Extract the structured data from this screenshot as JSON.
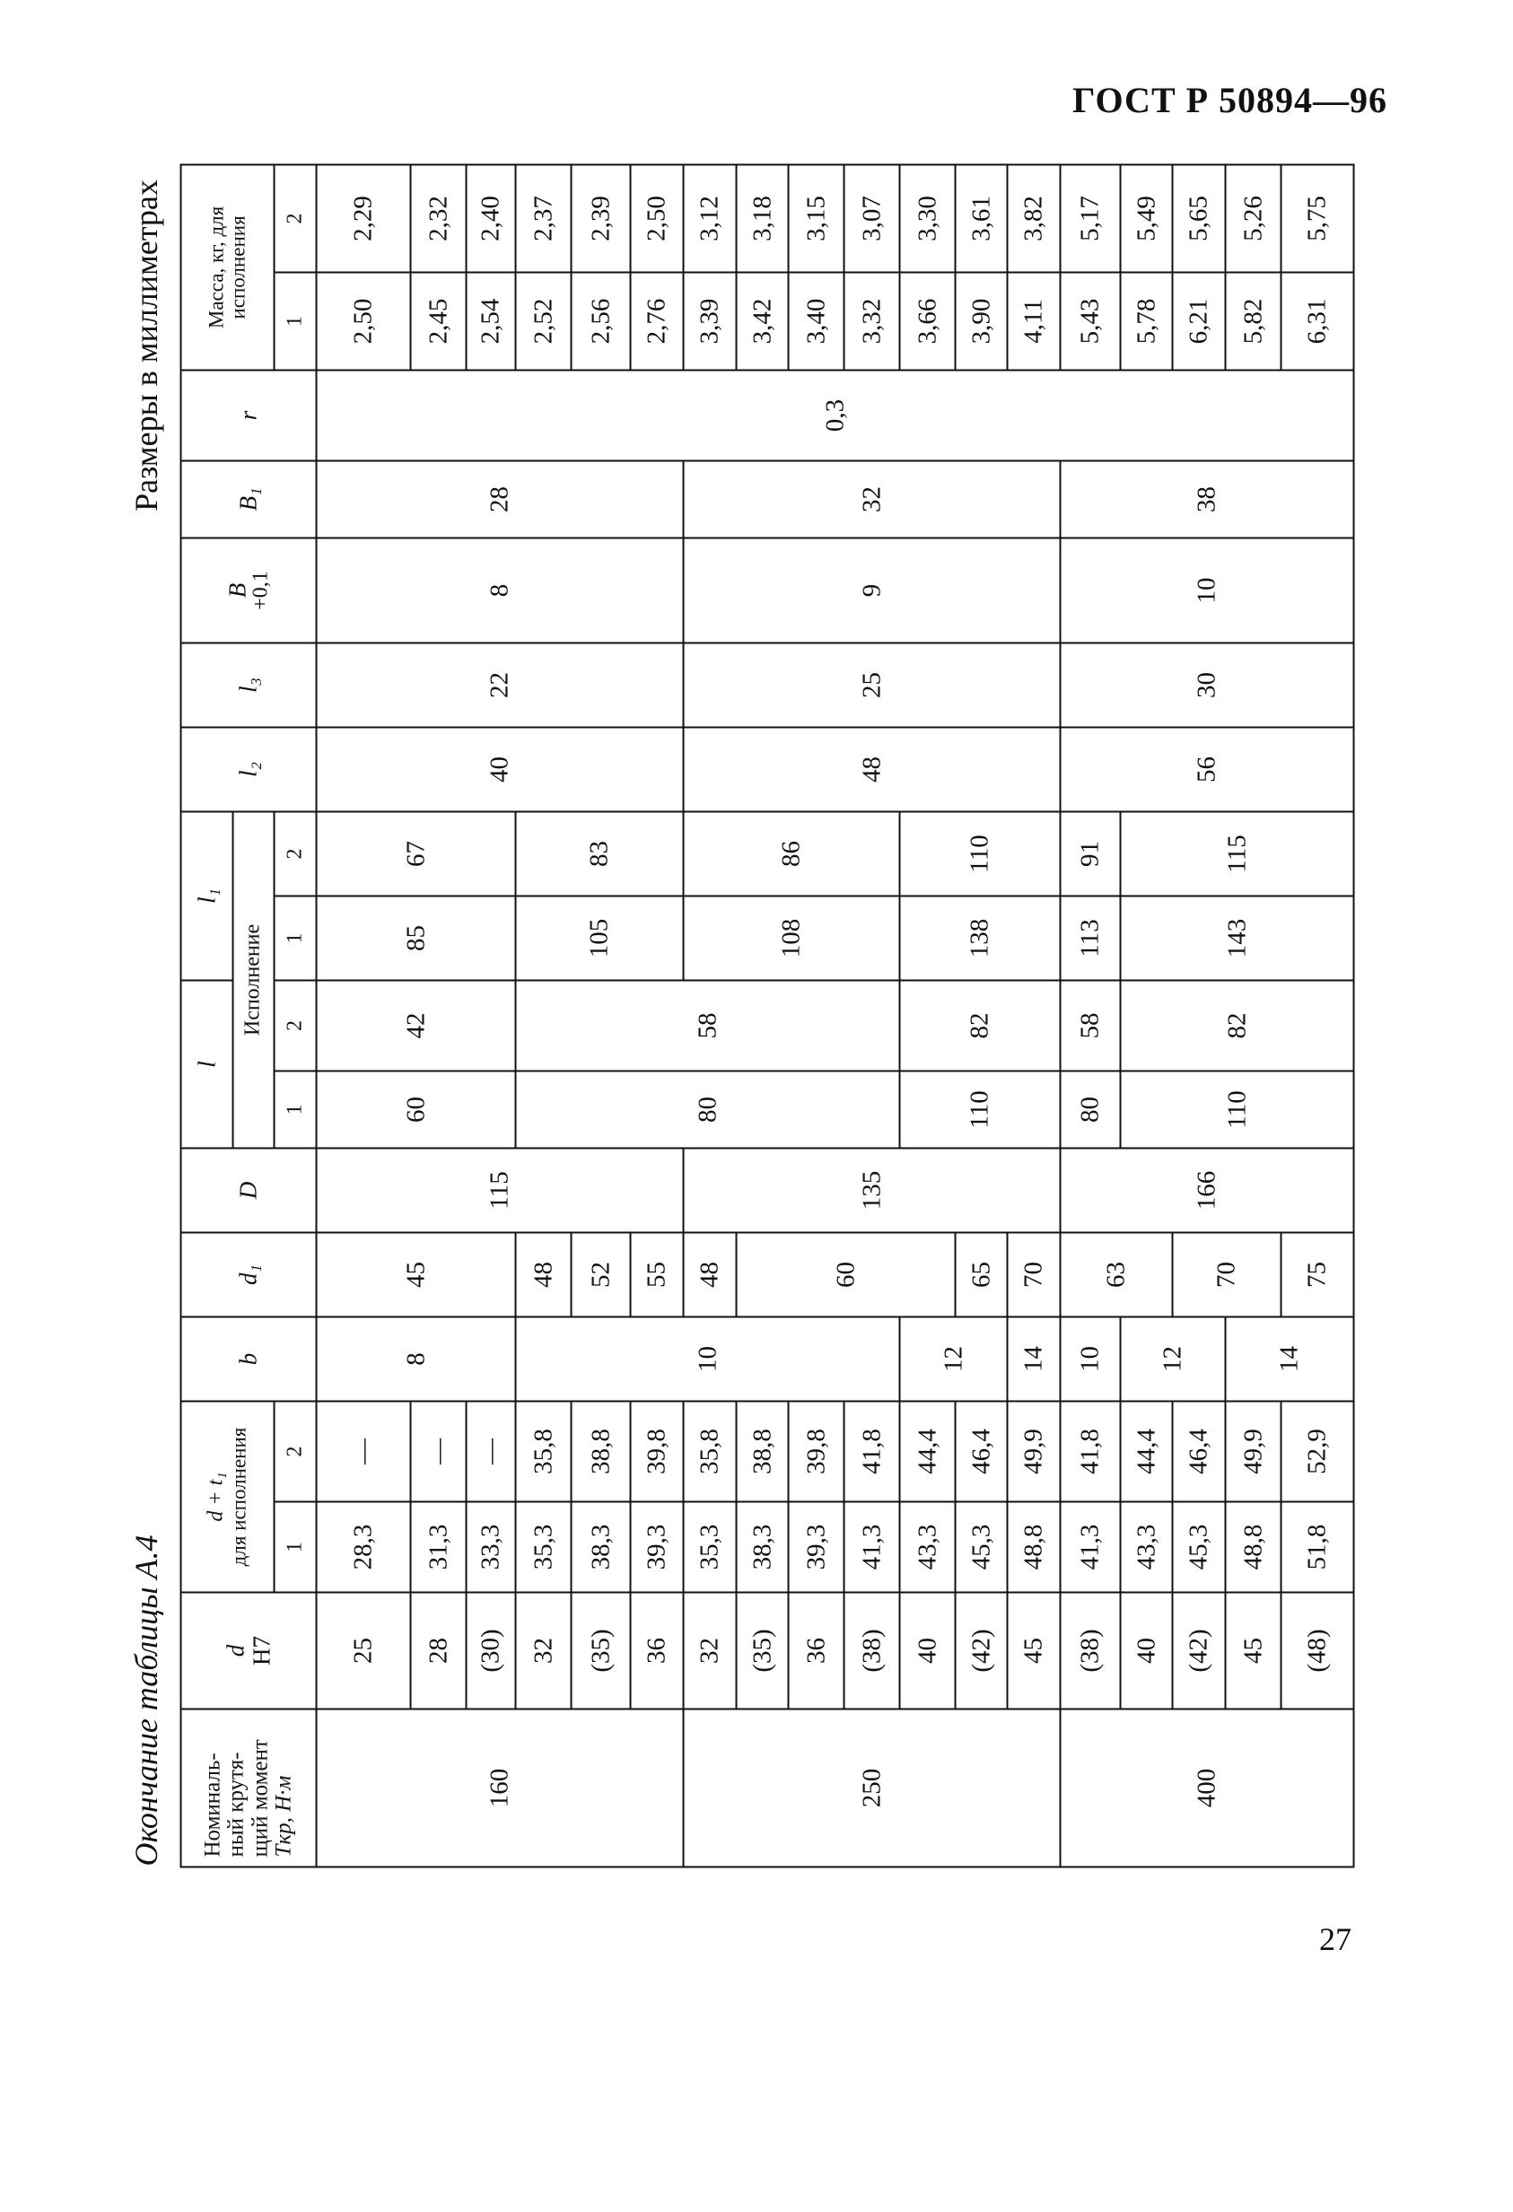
{
  "page": {
    "standard": "ГОСТ Р 50894—96",
    "units_note": "Размеры в миллиметрах",
    "caption": "Окончание таблицы А.4",
    "page_number": "27"
  },
  "table": {
    "headers": {
      "torque_line1": "Номиналь-",
      "torque_line2": "ный крутя-",
      "torque_line3": "щий момент",
      "torque_line4": "Tкр, Н·м",
      "d": "d",
      "d_tol": "H7",
      "dt1": "d + t₁",
      "dt1_sub": "для исполнения",
      "b": "b",
      "d1": "d₁",
      "D": "D",
      "l": "l",
      "l1": "l₁",
      "execution": "Исполнение",
      "l2": "l₂",
      "l3": "l₃",
      "B": "B",
      "B_tol": "+0,1",
      "B1": "B₁",
      "r": "r",
      "mass": "Масса, кг, для исполнения",
      "exec1": "1",
      "exec2": "2"
    },
    "columns": [
      {
        "key": "torque",
        "cells": [
          [
            "160",
            6
          ],
          [
            "250",
            7
          ],
          [
            "400",
            5
          ]
        ]
      },
      {
        "key": "d",
        "cells": [
          [
            "25",
            1
          ],
          [
            "28",
            1
          ],
          [
            "(30)",
            1
          ],
          [
            "32",
            1
          ],
          [
            "(35)",
            1
          ],
          [
            "36",
            1
          ],
          [
            "32",
            1
          ],
          [
            "(35)",
            1
          ],
          [
            "36",
            1
          ],
          [
            "(38)",
            1
          ],
          [
            "40",
            1
          ],
          [
            "(42)",
            1
          ],
          [
            "45",
            1
          ],
          [
            "(38)",
            1
          ],
          [
            "40",
            1
          ],
          [
            "(42)",
            1
          ],
          [
            "45",
            1
          ],
          [
            "(48)",
            1
          ]
        ]
      },
      {
        "key": "dt1_exec1",
        "cells": [
          [
            "28,3",
            1
          ],
          [
            "31,3",
            1
          ],
          [
            "33,3",
            1
          ],
          [
            "35,3",
            1
          ],
          [
            "38,3",
            1
          ],
          [
            "39,3",
            1
          ],
          [
            "35,3",
            1
          ],
          [
            "38,3",
            1
          ],
          [
            "39,3",
            1
          ],
          [
            "41,3",
            1
          ],
          [
            "43,3",
            1
          ],
          [
            "45,3",
            1
          ],
          [
            "48,8",
            1
          ],
          [
            "41,3",
            1
          ],
          [
            "43,3",
            1
          ],
          [
            "45,3",
            1
          ],
          [
            "48,8",
            1
          ],
          [
            "51,8",
            1
          ]
        ]
      },
      {
        "key": "dt1_exec2",
        "cells": [
          [
            "—",
            1
          ],
          [
            "—",
            1
          ],
          [
            "—",
            1
          ],
          [
            "35,8",
            1
          ],
          [
            "38,8",
            1
          ],
          [
            "39,8",
            1
          ],
          [
            "35,8",
            1
          ],
          [
            "38,8",
            1
          ],
          [
            "39,8",
            1
          ],
          [
            "41,8",
            1
          ],
          [
            "44,4",
            1
          ],
          [
            "46,4",
            1
          ],
          [
            "49,9",
            1
          ],
          [
            "41,8",
            1
          ],
          [
            "44,4",
            1
          ],
          [
            "46,4",
            1
          ],
          [
            "49,9",
            1
          ],
          [
            "52,9",
            1
          ]
        ]
      },
      {
        "key": "b",
        "cells": [
          [
            "8",
            3
          ],
          [
            "10",
            7
          ],
          [
            "12",
            2
          ],
          [
            "14",
            1
          ],
          [
            "10",
            1
          ],
          [
            "12",
            2
          ],
          [
            "14",
            2
          ]
        ]
      },
      {
        "key": "d1",
        "cells": [
          [
            "45",
            3
          ],
          [
            "48",
            1
          ],
          [
            "52",
            1
          ],
          [
            "55",
            1
          ],
          [
            "48",
            1
          ],
          [
            "60",
            4
          ],
          [
            "65",
            1
          ],
          [
            "70",
            1
          ],
          [
            "63",
            2
          ],
          [
            "70",
            2
          ],
          [
            "75",
            1
          ]
        ]
      },
      {
        "key": "D",
        "cells": [
          [
            "115",
            6
          ],
          [
            "135",
            7
          ],
          [
            "166",
            5
          ]
        ]
      },
      {
        "key": "l_exec1",
        "cells": [
          [
            "60",
            3
          ],
          [
            "80",
            7
          ],
          [
            "110",
            3
          ],
          [
            "80",
            1
          ],
          [
            "110",
            4
          ]
        ]
      },
      {
        "key": "l_exec2",
        "cells": [
          [
            "42",
            3
          ],
          [
            "58",
            7
          ],
          [
            "82",
            3
          ],
          [
            "58",
            1
          ],
          [
            "82",
            4
          ]
        ]
      },
      {
        "key": "l1_exec1",
        "cells": [
          [
            "85",
            3
          ],
          [
            "105",
            3
          ],
          [
            "108",
            4
          ],
          [
            "138",
            3
          ],
          [
            "113",
            1
          ],
          [
            "143",
            4
          ]
        ]
      },
      {
        "key": "l1_exec2",
        "cells": [
          [
            "67",
            3
          ],
          [
            "83",
            3
          ],
          [
            "86",
            4
          ],
          [
            "110",
            3
          ],
          [
            "91",
            1
          ],
          [
            "115",
            4
          ]
        ]
      },
      {
        "key": "l2",
        "cells": [
          [
            "40",
            6
          ],
          [
            "48",
            7
          ],
          [
            "56",
            5
          ]
        ]
      },
      {
        "key": "l3",
        "cells": [
          [
            "22",
            6
          ],
          [
            "25",
            7
          ],
          [
            "30",
            5
          ]
        ]
      },
      {
        "key": "B",
        "cells": [
          [
            "8",
            6
          ],
          [
            "9",
            7
          ],
          [
            "10",
            5
          ]
        ]
      },
      {
        "key": "B1",
        "cells": [
          [
            "28",
            6
          ],
          [
            "32",
            7
          ],
          [
            "38",
            5
          ]
        ]
      },
      {
        "key": "r",
        "cells": [
          [
            "0,3",
            18
          ]
        ]
      },
      {
        "key": "mass_exec1",
        "cells": [
          [
            "2,50",
            1
          ],
          [
            "2,45",
            1
          ],
          [
            "2,54",
            1
          ],
          [
            "2,52",
            1
          ],
          [
            "2,56",
            1
          ],
          [
            "2,76",
            1
          ],
          [
            "3,39",
            1
          ],
          [
            "3,42",
            1
          ],
          [
            "3,40",
            1
          ],
          [
            "3,32",
            1
          ],
          [
            "3,66",
            1
          ],
          [
            "3,90",
            1
          ],
          [
            "4,11",
            1
          ],
          [
            "5,43",
            1
          ],
          [
            "5,78",
            1
          ],
          [
            "6,21",
            1
          ],
          [
            "5,82",
            1
          ],
          [
            "6,31",
            1
          ]
        ]
      },
      {
        "key": "mass_exec2",
        "cells": [
          [
            "2,29",
            1
          ],
          [
            "2,32",
            1
          ],
          [
            "2,40",
            1
          ],
          [
            "2,37",
            1
          ],
          [
            "2,39",
            1
          ],
          [
            "2,50",
            1
          ],
          [
            "3,12",
            1
          ],
          [
            "3,18",
            1
          ],
          [
            "3,15",
            1
          ],
          [
            "3,07",
            1
          ],
          [
            "3,30",
            1
          ],
          [
            "3,61",
            1
          ],
          [
            "3,82",
            1
          ],
          [
            "5,17",
            1
          ],
          [
            "5,49",
            1
          ],
          [
            "5,65",
            1
          ],
          [
            "5,26",
            1
          ],
          [
            "5,75",
            1
          ]
        ]
      }
    ]
  }
}
